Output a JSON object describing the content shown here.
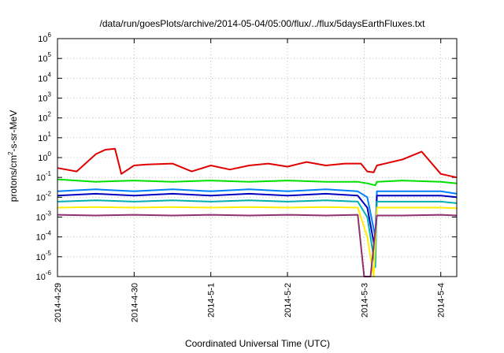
{
  "chart_data": {
    "type": "line",
    "title": "/data/run/goesPlots/archive/2014-05-04/05:00/flux/../flux/5daysEarthFluxes.txt",
    "xlabel": "Coordinated Universal Time (UTC)",
    "ylabel": {
      "base": "protons/cm",
      "sup": "2",
      "rest": "-s-sr-MeV"
    },
    "scale": {
      "y": "log"
    },
    "grid": true,
    "legend": "none",
    "xlim": [
      "2014-04-29T00:00",
      "2014-05-04T05:00"
    ],
    "ylim": [
      1e-06,
      1000000.0
    ],
    "x_ticks": [
      "2014-4-29",
      "2014-4-30",
      "2014-5-1",
      "2014-5-2",
      "2014-5-3",
      "2014-5-4"
    ],
    "y_ticks": [
      {
        "base": "10",
        "exp": "6"
      },
      {
        "base": "10",
        "exp": "5"
      },
      {
        "base": "10",
        "exp": "4"
      },
      {
        "base": "10",
        "exp": "3"
      },
      {
        "base": "10",
        "exp": "2"
      },
      {
        "base": "10",
        "exp": "1"
      },
      {
        "base": "10",
        "exp": "0"
      },
      {
        "base": "10",
        "exp": "-1"
      },
      {
        "base": "10",
        "exp": "-2"
      },
      {
        "base": "10",
        "exp": "-3"
      },
      {
        "base": "10",
        "exp": "-4"
      },
      {
        "base": "10",
        "exp": "-5"
      },
      {
        "base": "10",
        "exp": "-6"
      }
    ],
    "series": [
      {
        "color": "#e00000",
        "x": [
          "2014-04-29T00:00",
          "2014-04-29T06:00",
          "2014-04-29T12:00",
          "2014-04-29T15:00",
          "2014-04-29T18:00",
          "2014-04-29T20:00",
          "2014-04-30T00:00",
          "2014-04-30T04:00",
          "2014-04-30T12:00",
          "2014-04-30T18:00",
          "2014-05-01T00:00",
          "2014-05-01T06:00",
          "2014-05-01T12:00",
          "2014-05-01T18:00",
          "2014-05-02T00:00",
          "2014-05-02T06:00",
          "2014-05-02T12:00",
          "2014-05-02T18:00",
          "2014-05-02T23:00",
          "2014-05-03T01:00",
          "2014-05-03T03:00",
          "2014-05-03T04:00",
          "2014-05-03T12:00",
          "2014-05-03T18:00",
          "2014-05-04T00:00",
          "2014-05-04T05:00"
        ],
        "y": [
          0.3,
          0.2,
          1.5,
          2.5,
          2.8,
          0.15,
          0.4,
          0.45,
          0.5,
          0.2,
          0.4,
          0.25,
          0.4,
          0.5,
          0.35,
          0.6,
          0.4,
          0.5,
          0.5,
          0.2,
          0.18,
          0.4,
          0.8,
          2.0,
          0.15,
          0.1
        ]
      },
      {
        "color": "#00e000",
        "x": [
          "2014-04-29T00:00",
          "2014-04-29T12:00",
          "2014-04-30T00:00",
          "2014-04-30T12:00",
          "2014-05-01T00:00",
          "2014-05-01T12:00",
          "2014-05-02T00:00",
          "2014-05-02T12:00",
          "2014-05-02T22:00",
          "2014-05-03T01:00",
          "2014-05-03T03:30",
          "2014-05-03T04:00",
          "2014-05-03T12:00",
          "2014-05-04T00:00",
          "2014-05-04T05:00"
        ],
        "y": [
          0.08,
          0.06,
          0.07,
          0.06,
          0.07,
          0.06,
          0.07,
          0.06,
          0.06,
          0.05,
          0.04,
          0.06,
          0.07,
          0.06,
          0.05
        ]
      },
      {
        "color": "#0080ff",
        "x": [
          "2014-04-29T00:00",
          "2014-04-29T12:00",
          "2014-04-30T00:00",
          "2014-04-30T12:00",
          "2014-05-01T00:00",
          "2014-05-01T12:00",
          "2014-05-02T00:00",
          "2014-05-02T12:00",
          "2014-05-02T22:00",
          "2014-05-03T01:00",
          "2014-05-03T03:30",
          "2014-05-03T04:00",
          "2014-05-03T12:00",
          "2014-05-04T00:00",
          "2014-05-04T05:00"
        ],
        "y": [
          0.02,
          0.025,
          0.02,
          0.025,
          0.02,
          0.025,
          0.02,
          0.025,
          0.02,
          0.01,
          0.0001,
          0.02,
          0.02,
          0.02,
          0.015
        ]
      },
      {
        "color": "#0000c0",
        "x": [
          "2014-04-29T00:00",
          "2014-04-29T12:00",
          "2014-04-30T00:00",
          "2014-04-30T12:00",
          "2014-05-01T00:00",
          "2014-05-01T12:00",
          "2014-05-02T00:00",
          "2014-05-02T12:00",
          "2014-05-02T22:00",
          "2014-05-03T01:00",
          "2014-05-03T03:30",
          "2014-05-03T04:00",
          "2014-05-03T12:00",
          "2014-05-04T00:00",
          "2014-05-04T05:00"
        ],
        "y": [
          0.012,
          0.015,
          0.012,
          0.015,
          0.012,
          0.015,
          0.012,
          0.015,
          0.012,
          0.003,
          2e-05,
          0.012,
          0.012,
          0.012,
          0.01
        ]
      },
      {
        "color": "#00b0b0",
        "x": [
          "2014-04-29T00:00",
          "2014-04-29T12:00",
          "2014-04-30T00:00",
          "2014-04-30T12:00",
          "2014-05-01T00:00",
          "2014-05-01T12:00",
          "2014-05-02T00:00",
          "2014-05-02T12:00",
          "2014-05-02T22:00",
          "2014-05-03T01:00",
          "2014-05-03T03:30",
          "2014-05-03T04:00",
          "2014-05-03T12:00",
          "2014-05-04T00:00",
          "2014-05-04T05:00"
        ],
        "y": [
          0.006,
          0.007,
          0.006,
          0.007,
          0.006,
          0.007,
          0.006,
          0.007,
          0.006,
          0.001,
          3e-06,
          0.006,
          0.006,
          0.006,
          0.005
        ]
      },
      {
        "color": "#ffee00",
        "x": [
          "2014-04-29T00:00",
          "2014-04-29T12:00",
          "2014-04-30T00:00",
          "2014-04-30T12:00",
          "2014-05-01T00:00",
          "2014-05-01T12:00",
          "2014-05-02T00:00",
          "2014-05-02T12:00",
          "2014-05-02T22:00",
          "2014-05-03T01:00",
          "2014-05-03T03:00",
          "2014-05-03T04:00",
          "2014-05-03T12:00",
          "2014-05-04T00:00",
          "2014-05-04T05:00"
        ],
        "y": [
          0.003,
          0.0032,
          0.003,
          0.0032,
          0.003,
          0.0032,
          0.003,
          0.0032,
          0.003,
          0.0001,
          1e-06,
          0.003,
          0.003,
          0.003,
          0.0028
        ]
      },
      {
        "color": "#903070",
        "x": [
          "2014-04-29T00:00",
          "2014-04-29T12:00",
          "2014-04-30T00:00",
          "2014-04-30T12:00",
          "2014-05-01T00:00",
          "2014-05-01T12:00",
          "2014-05-02T00:00",
          "2014-05-02T12:00",
          "2014-05-02T22:00",
          "2014-05-03T00:00",
          "2014-05-03T02:00",
          "2014-05-03T04:00",
          "2014-05-03T12:00",
          "2014-05-04T00:00",
          "2014-05-04T05:00"
        ],
        "y": [
          0.0013,
          0.0012,
          0.0013,
          0.0012,
          0.0013,
          0.0012,
          0.0013,
          0.0012,
          0.0013,
          1e-06,
          1e-06,
          0.0012,
          0.0012,
          0.0013,
          0.0012
        ]
      }
    ]
  }
}
